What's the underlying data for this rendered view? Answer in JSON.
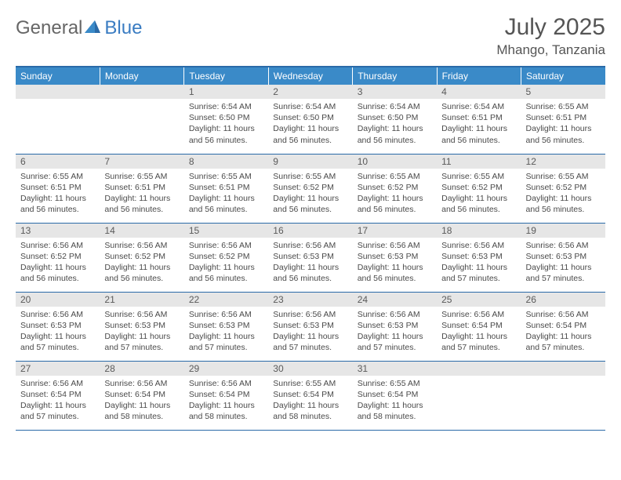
{
  "brand": {
    "part1": "General",
    "part2": "Blue"
  },
  "title": "July 2025",
  "location": "Mhango, Tanzania",
  "colors": {
    "header_bg": "#3a8ac8",
    "header_border": "#2a6aa8",
    "daynum_bg": "#e6e6e6",
    "text": "#4a4a4a",
    "brand_blue": "#3a7cc2"
  },
  "weekdays": [
    "Sunday",
    "Monday",
    "Tuesday",
    "Wednesday",
    "Thursday",
    "Friday",
    "Saturday"
  ],
  "weeks": [
    [
      null,
      null,
      {
        "n": "1",
        "sr": "6:54 AM",
        "ss": "6:50 PM",
        "dl": "11 hours and 56 minutes."
      },
      {
        "n": "2",
        "sr": "6:54 AM",
        "ss": "6:50 PM",
        "dl": "11 hours and 56 minutes."
      },
      {
        "n": "3",
        "sr": "6:54 AM",
        "ss": "6:50 PM",
        "dl": "11 hours and 56 minutes."
      },
      {
        "n": "4",
        "sr": "6:54 AM",
        "ss": "6:51 PM",
        "dl": "11 hours and 56 minutes."
      },
      {
        "n": "5",
        "sr": "6:55 AM",
        "ss": "6:51 PM",
        "dl": "11 hours and 56 minutes."
      }
    ],
    [
      {
        "n": "6",
        "sr": "6:55 AM",
        "ss": "6:51 PM",
        "dl": "11 hours and 56 minutes."
      },
      {
        "n": "7",
        "sr": "6:55 AM",
        "ss": "6:51 PM",
        "dl": "11 hours and 56 minutes."
      },
      {
        "n": "8",
        "sr": "6:55 AM",
        "ss": "6:51 PM",
        "dl": "11 hours and 56 minutes."
      },
      {
        "n": "9",
        "sr": "6:55 AM",
        "ss": "6:52 PM",
        "dl": "11 hours and 56 minutes."
      },
      {
        "n": "10",
        "sr": "6:55 AM",
        "ss": "6:52 PM",
        "dl": "11 hours and 56 minutes."
      },
      {
        "n": "11",
        "sr": "6:55 AM",
        "ss": "6:52 PM",
        "dl": "11 hours and 56 minutes."
      },
      {
        "n": "12",
        "sr": "6:55 AM",
        "ss": "6:52 PM",
        "dl": "11 hours and 56 minutes."
      }
    ],
    [
      {
        "n": "13",
        "sr": "6:56 AM",
        "ss": "6:52 PM",
        "dl": "11 hours and 56 minutes."
      },
      {
        "n": "14",
        "sr": "6:56 AM",
        "ss": "6:52 PM",
        "dl": "11 hours and 56 minutes."
      },
      {
        "n": "15",
        "sr": "6:56 AM",
        "ss": "6:52 PM",
        "dl": "11 hours and 56 minutes."
      },
      {
        "n": "16",
        "sr": "6:56 AM",
        "ss": "6:53 PM",
        "dl": "11 hours and 56 minutes."
      },
      {
        "n": "17",
        "sr": "6:56 AM",
        "ss": "6:53 PM",
        "dl": "11 hours and 56 minutes."
      },
      {
        "n": "18",
        "sr": "6:56 AM",
        "ss": "6:53 PM",
        "dl": "11 hours and 57 minutes."
      },
      {
        "n": "19",
        "sr": "6:56 AM",
        "ss": "6:53 PM",
        "dl": "11 hours and 57 minutes."
      }
    ],
    [
      {
        "n": "20",
        "sr": "6:56 AM",
        "ss": "6:53 PM",
        "dl": "11 hours and 57 minutes."
      },
      {
        "n": "21",
        "sr": "6:56 AM",
        "ss": "6:53 PM",
        "dl": "11 hours and 57 minutes."
      },
      {
        "n": "22",
        "sr": "6:56 AM",
        "ss": "6:53 PM",
        "dl": "11 hours and 57 minutes."
      },
      {
        "n": "23",
        "sr": "6:56 AM",
        "ss": "6:53 PM",
        "dl": "11 hours and 57 minutes."
      },
      {
        "n": "24",
        "sr": "6:56 AM",
        "ss": "6:53 PM",
        "dl": "11 hours and 57 minutes."
      },
      {
        "n": "25",
        "sr": "6:56 AM",
        "ss": "6:54 PM",
        "dl": "11 hours and 57 minutes."
      },
      {
        "n": "26",
        "sr": "6:56 AM",
        "ss": "6:54 PM",
        "dl": "11 hours and 57 minutes."
      }
    ],
    [
      {
        "n": "27",
        "sr": "6:56 AM",
        "ss": "6:54 PM",
        "dl": "11 hours and 57 minutes."
      },
      {
        "n": "28",
        "sr": "6:56 AM",
        "ss": "6:54 PM",
        "dl": "11 hours and 58 minutes."
      },
      {
        "n": "29",
        "sr": "6:56 AM",
        "ss": "6:54 PM",
        "dl": "11 hours and 58 minutes."
      },
      {
        "n": "30",
        "sr": "6:55 AM",
        "ss": "6:54 PM",
        "dl": "11 hours and 58 minutes."
      },
      {
        "n": "31",
        "sr": "6:55 AM",
        "ss": "6:54 PM",
        "dl": "11 hours and 58 minutes."
      },
      null,
      null
    ]
  ],
  "labels": {
    "sunrise": "Sunrise:",
    "sunset": "Sunset:",
    "daylight": "Daylight:"
  }
}
